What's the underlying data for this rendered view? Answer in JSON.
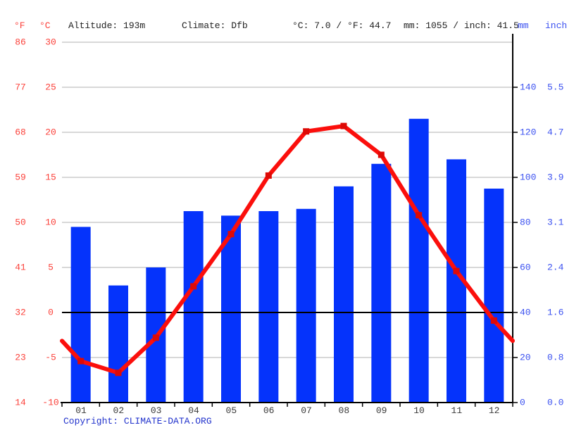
{
  "header": {
    "f_label": "°F",
    "c_label": "°C",
    "altitude": "Altitude: 193m",
    "climate": "Climate: Dfb",
    "temp_summary": "°C: 7.0 / °F: 44.7",
    "precip_summary": "mm: 1055 / inch: 41.5",
    "mm_label": "mm",
    "inch_label": "inch"
  },
  "copyright": {
    "prefix": "Copyright: ",
    "link": "CLIMATE-DATA.ORG"
  },
  "colors": {
    "background": "#ffffff",
    "bar": "#0533fb",
    "line": "#fb0f0c",
    "marker": "#dd0a06",
    "grid": "#cccccc",
    "axis": "#000000",
    "label_red": "#fb423b",
    "label_blue": "#3a50f0",
    "month_label": "#3a3a3a",
    "copyright": "#2233cc"
  },
  "chart_data": {
    "type": "bar",
    "subtype": "climograph (precipitation bars + temperature line)",
    "categories": [
      "01",
      "02",
      "03",
      "04",
      "05",
      "06",
      "07",
      "08",
      "09",
      "10",
      "11",
      "12"
    ],
    "series": [
      {
        "name": "Precipitation (mm)",
        "type": "bar",
        "values": [
          78,
          52,
          60,
          85,
          83,
          85,
          86,
          96,
          106,
          126,
          108,
          95
        ]
      },
      {
        "name": "Temperature (°C)",
        "type": "line",
        "values": [
          -5.4,
          -6.7,
          -2.8,
          2.9,
          8.7,
          15.2,
          20.1,
          20.7,
          17.5,
          10.8,
          4.6,
          -0.9
        ]
      }
    ],
    "axes": {
      "left_f": {
        "title": "°F",
        "ticks": [
          86,
          77,
          68,
          59,
          50,
          41,
          32,
          23,
          14
        ]
      },
      "left_c": {
        "title": "°C",
        "ticks": [
          30,
          25,
          20,
          15,
          10,
          5,
          0,
          -5,
          -10
        ],
        "range": [
          30,
          -10
        ]
      },
      "right_mm": {
        "title": "mm",
        "ticks": [
          "140",
          "120",
          "100",
          "80",
          "60",
          "40",
          "20",
          "0"
        ],
        "range": [
          160,
          0
        ]
      },
      "right_inch": {
        "title": "inch",
        "ticks": [
          "5.5",
          "4.7",
          "3.9",
          "3.1",
          "2.4",
          "1.6",
          "0.8",
          "0.0"
        ]
      }
    },
    "grid": true,
    "zero_line_c": 0,
    "legend": "none",
    "title": ""
  }
}
